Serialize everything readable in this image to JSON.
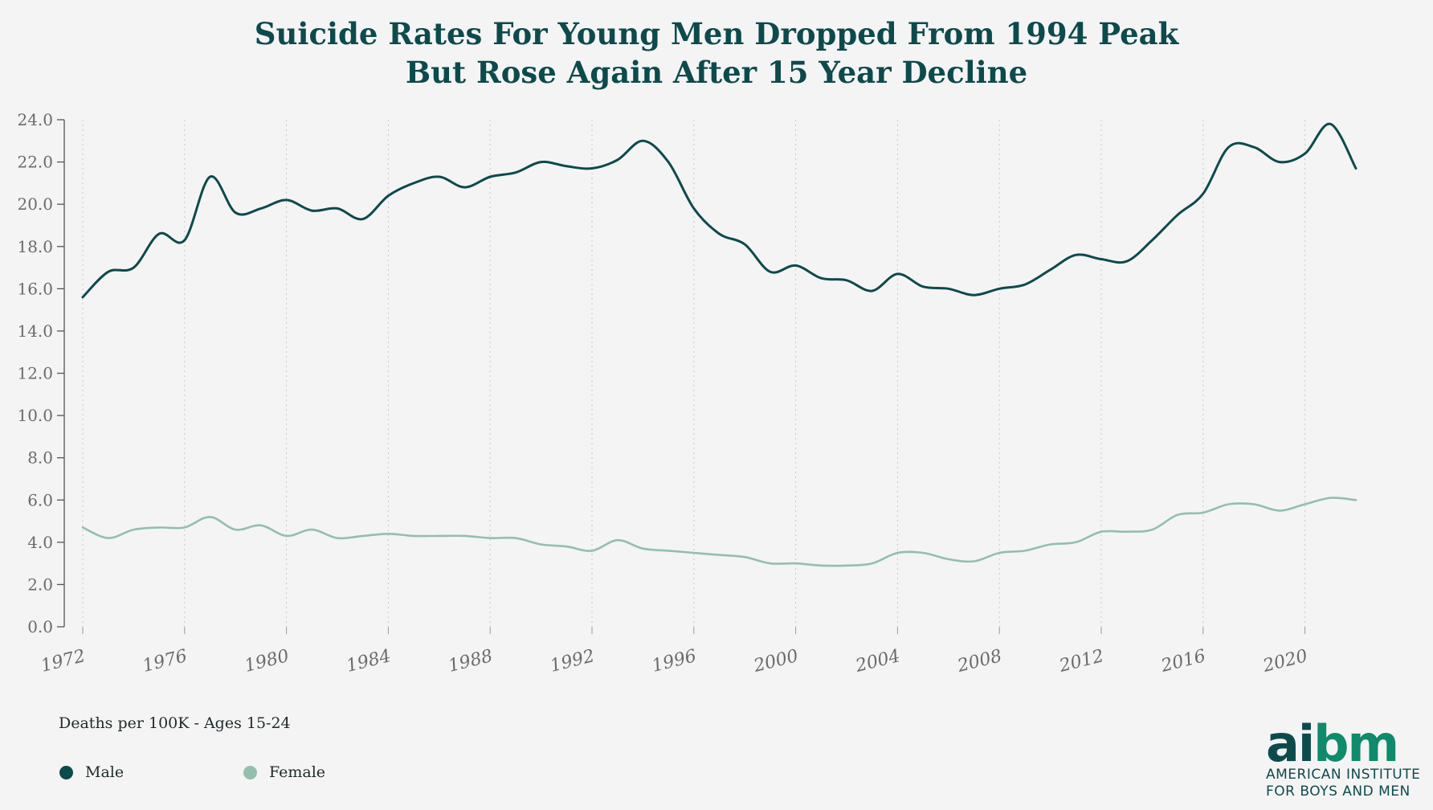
{
  "chart_data": {
    "type": "line",
    "title_line1": "Suicide Rates For Young Men Dropped From 1994 Peak",
    "title_line2": "But Rose Again After 15 Year Decline",
    "ylabel": "Deaths per 100K - Ages 15-24",
    "ylim": [
      0,
      24
    ],
    "xlim": [
      1972,
      2022
    ],
    "y_ticks": [
      "0.0",
      "2.0",
      "4.0",
      "6.0",
      "8.0",
      "10.0",
      "12.0",
      "14.0",
      "16.0",
      "18.0",
      "20.0",
      "22.0",
      "24.0"
    ],
    "x_ticks": [
      "1972",
      "1976",
      "1980",
      "1984",
      "1988",
      "1992",
      "1996",
      "2000",
      "2004",
      "2008",
      "2012",
      "2016",
      "2020"
    ],
    "x": [
      1972,
      1973,
      1974,
      1975,
      1976,
      1977,
      1978,
      1979,
      1980,
      1981,
      1982,
      1983,
      1984,
      1985,
      1986,
      1987,
      1988,
      1989,
      1990,
      1991,
      1992,
      1993,
      1994,
      1995,
      1996,
      1997,
      1998,
      1999,
      2000,
      2001,
      2002,
      2003,
      2004,
      2005,
      2006,
      2007,
      2008,
      2009,
      2010,
      2011,
      2012,
      2013,
      2014,
      2015,
      2016,
      2017,
      2018,
      2019,
      2020,
      2021,
      2022
    ],
    "grid": true,
    "legend_position": "bottom-left",
    "series": [
      {
        "name": "Male",
        "color": "#0d4a4c",
        "values": [
          15.6,
          16.8,
          17.0,
          18.6,
          18.3,
          21.3,
          19.6,
          19.8,
          20.2,
          19.7,
          19.8,
          19.3,
          20.4,
          21.0,
          21.3,
          20.8,
          21.3,
          21.5,
          22.0,
          21.8,
          21.7,
          22.1,
          23.0,
          22.0,
          19.8,
          18.6,
          18.1,
          16.8,
          17.1,
          16.5,
          16.4,
          15.9,
          16.7,
          16.1,
          16.0,
          15.7,
          16.0,
          16.2,
          16.9,
          17.6,
          17.4,
          17.3,
          18.3,
          19.5,
          20.5,
          22.7,
          22.7,
          22.0,
          22.4,
          23.8,
          21.7
        ]
      },
      {
        "name": "Female",
        "color": "#93bfae",
        "values": [
          4.7,
          4.2,
          4.6,
          4.7,
          4.7,
          5.2,
          4.6,
          4.8,
          4.3,
          4.6,
          4.2,
          4.3,
          4.4,
          4.3,
          4.3,
          4.3,
          4.2,
          4.2,
          3.9,
          3.8,
          3.6,
          4.1,
          3.7,
          3.6,
          3.5,
          3.4,
          3.3,
          3.0,
          3.0,
          2.9,
          2.9,
          3.0,
          3.5,
          3.5,
          3.2,
          3.1,
          3.5,
          3.6,
          3.9,
          4.0,
          4.5,
          4.5,
          4.6,
          5.3,
          5.4,
          5.8,
          5.8,
          5.5,
          5.8,
          6.1,
          6.0
        ]
      }
    ]
  },
  "logo": {
    "mark_a": "ai",
    "mark_b": "bm",
    "line1": "AMERICAN INSTITUTE",
    "line2": "FOR BOYS AND MEN",
    "color_dark": "#0d4a4c",
    "color_accent": "#0f8a6a"
  }
}
